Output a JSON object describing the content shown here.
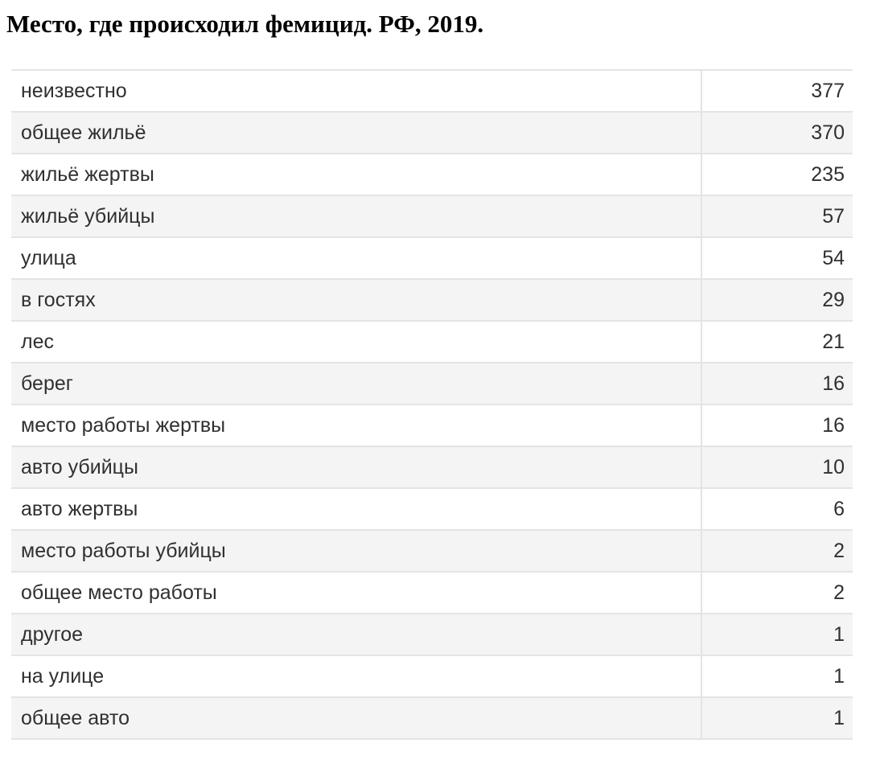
{
  "chart_data": {
    "type": "table",
    "title": "Место, где происходил фемицид. РФ, 2019.",
    "rows": [
      {
        "label": "неизвестно",
        "value": 377
      },
      {
        "label": "общее жильё",
        "value": 370
      },
      {
        "label": "жильё жертвы",
        "value": 235
      },
      {
        "label": "жильё убийцы",
        "value": 57
      },
      {
        "label": "улица",
        "value": 54
      },
      {
        "label": "в гостях",
        "value": 29
      },
      {
        "label": "лес",
        "value": 21
      },
      {
        "label": "берег",
        "value": 16
      },
      {
        "label": "место работы жертвы",
        "value": 16
      },
      {
        "label": "авто убийцы",
        "value": 10
      },
      {
        "label": "авто жертвы",
        "value": 6
      },
      {
        "label": "место работы убийцы",
        "value": 2
      },
      {
        "label": "общее место работы",
        "value": 2
      },
      {
        "label": "другое",
        "value": 1
      },
      {
        "label": "на улице",
        "value": 1
      },
      {
        "label": "общее авто",
        "value": 1
      }
    ]
  }
}
